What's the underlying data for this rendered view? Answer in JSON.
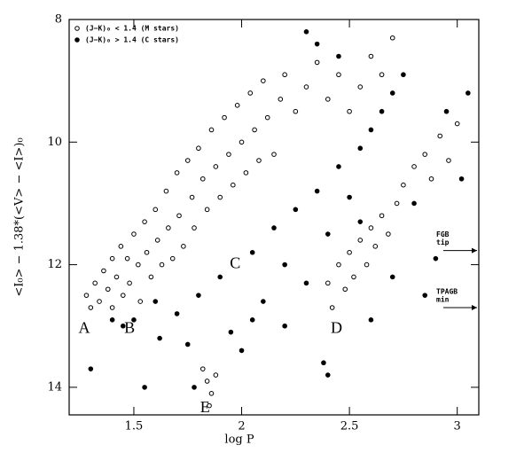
{
  "chart_data": {
    "type": "scatter",
    "x_label": "log P",
    "y_label": "<I₀> − 1.38*(<V> − <I>)₀",
    "xlim": [
      1.2,
      3.1
    ],
    "ylim": [
      14.45,
      8
    ],
    "xticks": [
      1.5,
      2,
      2.5,
      3
    ],
    "yticks": [
      8,
      10,
      12,
      14
    ],
    "legend": "top-left",
    "series": [
      {
        "name": "(J−K)₀ < 1.4   (M stars)",
        "color": "#000000",
        "marker": "open",
        "x": [
          1.28,
          1.3,
          1.32,
          1.34,
          1.36,
          1.38,
          1.4,
          1.4,
          1.42,
          1.44,
          1.45,
          1.47,
          1.48,
          1.5,
          1.52,
          1.53,
          1.55,
          1.56,
          1.58,
          1.6,
          1.61,
          1.63,
          1.65,
          1.66,
          1.68,
          1.7,
          1.71,
          1.73,
          1.75,
          1.77,
          1.78,
          1.8,
          1.82,
          1.84,
          1.86,
          1.88,
          1.9,
          1.92,
          1.94,
          1.96,
          1.98,
          2.0,
          2.02,
          2.04,
          2.06,
          2.08,
          2.1,
          2.12,
          2.15,
          2.18,
          2.2,
          2.25,
          2.3,
          2.35,
          2.4,
          2.45,
          2.5,
          2.55,
          2.6,
          2.65,
          2.7,
          2.4,
          2.42,
          2.45,
          2.48,
          2.5,
          2.52,
          2.55,
          2.58,
          2.6,
          2.62,
          2.65,
          2.68,
          2.72,
          2.75,
          2.8,
          2.85,
          2.88,
          2.92,
          2.96,
          3.0,
          1.82,
          1.84,
          1.86,
          1.88,
          1.85
        ],
        "values": [
          12.5,
          12.7,
          12.3,
          12.6,
          12.1,
          12.4,
          11.9,
          12.7,
          12.2,
          11.7,
          12.5,
          11.9,
          12.3,
          11.5,
          12.0,
          12.6,
          11.3,
          11.8,
          12.2,
          11.1,
          11.6,
          12.0,
          10.8,
          11.4,
          11.9,
          10.5,
          11.2,
          11.7,
          10.3,
          10.9,
          11.4,
          10.1,
          10.6,
          11.1,
          9.8,
          10.4,
          10.9,
          9.6,
          10.2,
          10.7,
          9.4,
          10.0,
          10.5,
          9.2,
          9.8,
          10.3,
          9.0,
          9.6,
          10.2,
          9.3,
          8.9,
          9.5,
          9.1,
          8.7,
          9.3,
          8.9,
          9.5,
          9.1,
          8.6,
          8.9,
          8.3,
          12.3,
          12.7,
          12.0,
          12.4,
          11.8,
          12.2,
          11.6,
          12.0,
          11.4,
          11.7,
          11.2,
          11.5,
          11.0,
          10.7,
          10.4,
          10.2,
          10.6,
          9.9,
          10.3,
          9.7,
          13.7,
          13.9,
          14.1,
          13.8,
          14.3
        ]
      },
      {
        "name": "(J−K)₀ > 1.4   (C stars)",
        "color": "#000000",
        "marker": "filled",
        "x": [
          1.3,
          1.45,
          1.55,
          1.62,
          1.7,
          1.75,
          1.8,
          1.9,
          1.95,
          2.0,
          2.05,
          2.1,
          2.15,
          2.2,
          2.25,
          2.3,
          2.35,
          2.4,
          2.45,
          2.5,
          2.55,
          2.6,
          2.65,
          2.7,
          2.75,
          2.3,
          2.35,
          2.45,
          2.55,
          2.6,
          2.7,
          2.8,
          2.85,
          2.9,
          2.95,
          3.02,
          3.05,
          2.38,
          2.4,
          1.78,
          1.5,
          1.4,
          1.6,
          2.05,
          2.2
        ],
        "values": [
          13.7,
          13.0,
          14.0,
          13.2,
          12.8,
          13.3,
          12.5,
          12.2,
          13.1,
          13.4,
          11.8,
          12.6,
          11.4,
          12.0,
          11.1,
          12.3,
          10.8,
          11.5,
          10.4,
          10.9,
          10.1,
          9.8,
          9.5,
          9.2,
          8.9,
          8.2,
          8.4,
          8.6,
          11.3,
          12.9,
          12.2,
          11.0,
          12.5,
          11.9,
          9.5,
          10.6,
          9.2,
          13.6,
          13.8,
          14.0,
          12.9,
          12.9,
          12.6,
          12.9,
          13.0
        ]
      }
    ],
    "annotations": [
      {
        "text": "A",
        "x": 1.27,
        "y": 13.05
      },
      {
        "text": "B",
        "x": 1.48,
        "y": 13.05
      },
      {
        "text": "C",
        "x": 1.97,
        "y": 12.0
      },
      {
        "text": "D",
        "x": 2.44,
        "y": 13.05
      },
      {
        "text": "E",
        "x": 1.83,
        "y": 14.35
      }
    ],
    "arrows": [
      {
        "lines": [
          "FGB",
          "tip"
        ],
        "y": 11.77
      },
      {
        "lines": [
          "TPAGB",
          "min"
        ],
        "y": 12.7
      }
    ]
  }
}
